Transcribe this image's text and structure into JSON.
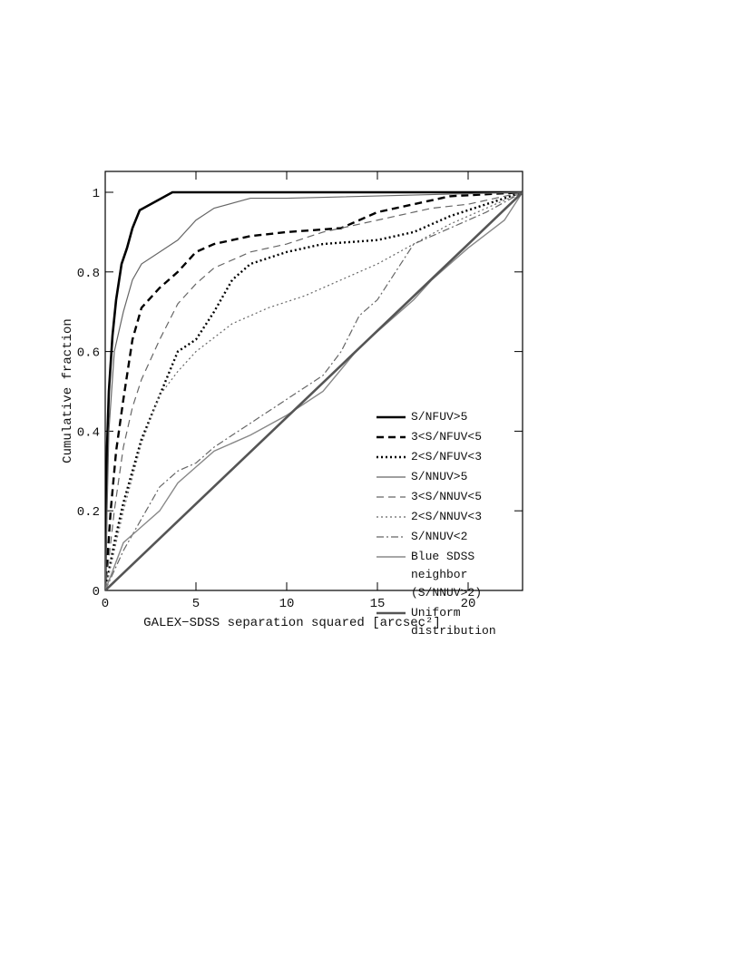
{
  "chart_data": {
    "type": "line",
    "xlabel": "GALEX−SDSS separation squared [arcsec²]",
    "ylabel": "Cumulative fraction",
    "xlim": [
      0,
      23
    ],
    "ylim": [
      0,
      1
    ],
    "xticks": [
      0,
      5,
      10,
      15,
      20
    ],
    "yticks": [
      0,
      0.2,
      0.4,
      0.6,
      0.8,
      1
    ],
    "grid": false,
    "series": [
      {
        "name": "S/NFUV>5",
        "color": "#000000",
        "linestyle": "solid",
        "linewidth": 2.6,
        "x": [
          0,
          0.1,
          0.2,
          0.4,
          0.6,
          0.9,
          1.2,
          1.5,
          1.9,
          3.7,
          23
        ],
        "values": [
          0,
          0.36,
          0.5,
          0.64,
          0.73,
          0.82,
          0.86,
          0.91,
          0.955,
          1,
          1
        ]
      },
      {
        "name": "3<S/NFUV<5",
        "color": "#000000",
        "linestyle": "dashed",
        "linewidth": 2.4,
        "x": [
          0,
          0.3,
          0.6,
          1,
          1.5,
          2,
          3,
          4,
          5,
          6,
          8,
          10,
          13,
          15,
          17,
          19,
          23
        ],
        "values": [
          0,
          0.2,
          0.35,
          0.48,
          0.63,
          0.71,
          0.76,
          0.8,
          0.85,
          0.87,
          0.89,
          0.9,
          0.91,
          0.95,
          0.97,
          0.99,
          1
        ]
      },
      {
        "name": "2<S/NFUV<3",
        "color": "#000000",
        "linestyle": "dotted",
        "linewidth": 2.4,
        "x": [
          0,
          0.5,
          1,
          2,
          3,
          4,
          5,
          6,
          7,
          8,
          10,
          12,
          15,
          17,
          19,
          23
        ],
        "values": [
          0,
          0.12,
          0.22,
          0.38,
          0.49,
          0.6,
          0.63,
          0.7,
          0.78,
          0.82,
          0.85,
          0.87,
          0.88,
          0.9,
          0.94,
          1
        ]
      },
      {
        "name": "S/NNUV>5",
        "color": "#666666",
        "linestyle": "solid",
        "linewidth": 1.2,
        "x": [
          0,
          0.2,
          0.5,
          1,
          1.5,
          2,
          3,
          4,
          5,
          6,
          8,
          10,
          23
        ],
        "values": [
          0,
          0.4,
          0.6,
          0.7,
          0.78,
          0.82,
          0.85,
          0.88,
          0.93,
          0.96,
          0.985,
          0.985,
          1
        ]
      },
      {
        "name": "3<S/NNUV<5",
        "color": "#666666",
        "linestyle": "dashed",
        "linewidth": 1.2,
        "x": [
          0,
          0.5,
          1,
          1.5,
          2,
          3,
          4,
          5,
          6,
          8,
          10,
          12,
          15,
          18,
          20,
          23
        ],
        "values": [
          0,
          0.2,
          0.36,
          0.46,
          0.53,
          0.63,
          0.72,
          0.77,
          0.81,
          0.85,
          0.87,
          0.9,
          0.93,
          0.96,
          0.97,
          1
        ]
      },
      {
        "name": "2<S/NNUV<3",
        "color": "#666666",
        "linestyle": "dotted",
        "linewidth": 1.2,
        "x": [
          0,
          1,
          2,
          3,
          4,
          5,
          7,
          9,
          11,
          13,
          15,
          17,
          19,
          21,
          23
        ],
        "values": [
          0,
          0.2,
          0.37,
          0.49,
          0.55,
          0.6,
          0.67,
          0.71,
          0.74,
          0.78,
          0.82,
          0.87,
          0.92,
          0.96,
          1
        ]
      },
      {
        "name": "S/NNUV<2",
        "color": "#666666",
        "linestyle": "dashdot",
        "linewidth": 1.2,
        "x": [
          0,
          1,
          2,
          3,
          4,
          5,
          6,
          7,
          8,
          10,
          12,
          13,
          14,
          15,
          16,
          17,
          19,
          21,
          23
        ],
        "values": [
          0,
          0.1,
          0.18,
          0.26,
          0.3,
          0.32,
          0.36,
          0.39,
          0.42,
          0.48,
          0.54,
          0.6,
          0.69,
          0.73,
          0.8,
          0.87,
          0.91,
          0.95,
          1
        ]
      },
      {
        "name": "Blue SDSS neighbor (S/NNUV>2)",
        "color": "#888888",
        "linestyle": "solid",
        "linewidth": 1.4,
        "x": [
          0,
          1,
          2,
          3,
          4,
          5,
          6,
          8,
          10,
          12,
          14,
          15,
          16,
          17,
          18,
          20,
          22,
          23
        ],
        "values": [
          0,
          0.12,
          0.16,
          0.2,
          0.27,
          0.31,
          0.35,
          0.39,
          0.44,
          0.5,
          0.61,
          0.65,
          0.69,
          0.73,
          0.78,
          0.86,
          0.93,
          1
        ]
      },
      {
        "name": "Uniform distribution",
        "color": "#555555",
        "linestyle": "solid",
        "linewidth": 2.6,
        "x": [
          0,
          23
        ],
        "values": [
          0,
          1
        ]
      }
    ]
  }
}
